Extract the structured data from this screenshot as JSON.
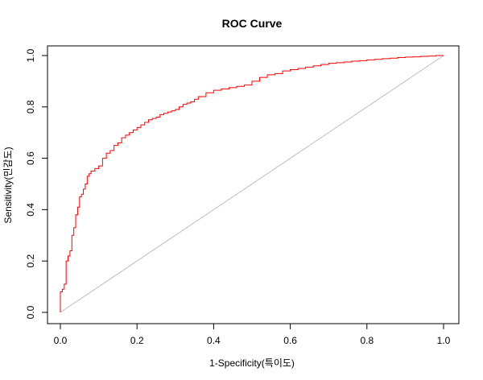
{
  "chart_data": {
    "type": "line",
    "title": "ROC Curve",
    "xlabel": "1-Specificity(특이도)",
    "ylabel": "Sensitivity(민감도)",
    "xlim": [
      0,
      1
    ],
    "ylim": [
      0,
      1
    ],
    "x_ticks": [
      "0.0",
      "0.2",
      "0.4",
      "0.6",
      "0.8",
      "1.0"
    ],
    "y_ticks": [
      "0.0",
      "0.2",
      "0.4",
      "0.6",
      "0.8",
      "1.0"
    ],
    "grid": false,
    "series": [
      {
        "color": "#ff0000",
        "x": [
          0.0,
          0.0,
          0.005,
          0.01,
          0.015,
          0.02,
          0.025,
          0.03,
          0.035,
          0.04,
          0.045,
          0.05,
          0.055,
          0.06,
          0.065,
          0.07,
          0.075,
          0.08,
          0.09,
          0.1,
          0.11,
          0.12,
          0.13,
          0.14,
          0.15,
          0.16,
          0.17,
          0.18,
          0.19,
          0.2,
          0.21,
          0.22,
          0.23,
          0.24,
          0.25,
          0.26,
          0.27,
          0.28,
          0.29,
          0.3,
          0.31,
          0.32,
          0.33,
          0.34,
          0.35,
          0.36,
          0.38,
          0.4,
          0.42,
          0.44,
          0.46,
          0.48,
          0.5,
          0.52,
          0.54,
          0.56,
          0.58,
          0.6,
          0.62,
          0.64,
          0.66,
          0.68,
          0.7,
          0.72,
          0.74,
          0.76,
          0.78,
          0.8,
          0.82,
          0.84,
          0.86,
          0.88,
          0.9,
          0.92,
          0.94,
          0.96,
          0.98,
          1.0
        ],
        "y": [
          0.0,
          0.08,
          0.09,
          0.11,
          0.2,
          0.22,
          0.24,
          0.3,
          0.33,
          0.38,
          0.41,
          0.45,
          0.46,
          0.48,
          0.5,
          0.53,
          0.54,
          0.55,
          0.56,
          0.57,
          0.6,
          0.62,
          0.63,
          0.65,
          0.66,
          0.68,
          0.69,
          0.7,
          0.71,
          0.72,
          0.73,
          0.74,
          0.75,
          0.755,
          0.76,
          0.77,
          0.775,
          0.78,
          0.785,
          0.79,
          0.8,
          0.81,
          0.815,
          0.82,
          0.83,
          0.84,
          0.855,
          0.865,
          0.87,
          0.875,
          0.88,
          0.885,
          0.9,
          0.915,
          0.925,
          0.93,
          0.94,
          0.945,
          0.95,
          0.955,
          0.96,
          0.965,
          0.97,
          0.972,
          0.975,
          0.978,
          0.98,
          0.983,
          0.985,
          0.988,
          0.99,
          0.992,
          0.994,
          0.995,
          0.997,
          0.998,
          1.0,
          1.0
        ]
      }
    ],
    "reference_line": {
      "x": [
        0,
        1
      ],
      "y": [
        0,
        1
      ],
      "color": "#bebebe"
    }
  }
}
